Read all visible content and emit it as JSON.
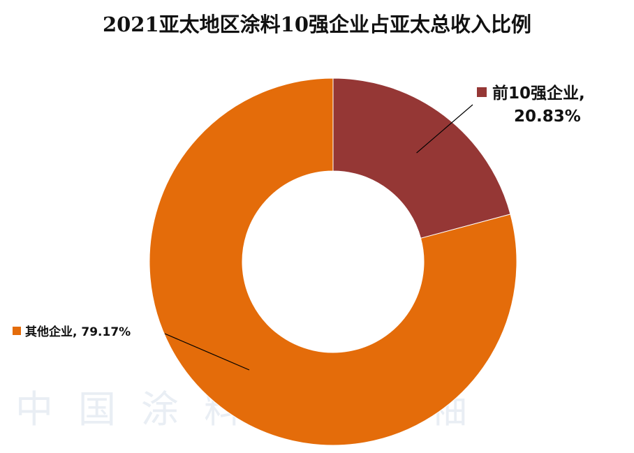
{
  "chart_data": {
    "type": "pie",
    "title": "2021亚太地区涂料10强企业占亚太总收入比例",
    "slices": [
      {
        "label": "前10强企业",
        "value": 20.83,
        "display": "20.83%",
        "color": "#953735"
      },
      {
        "label": "其他企业",
        "value": 79.17,
        "display": "79.17%",
        "color": "#e46c0a"
      }
    ],
    "donut": true
  },
  "watermark": "中国涂料 见领袖",
  "colors": {
    "leader_line": "#000000",
    "background": "#ffffff"
  }
}
